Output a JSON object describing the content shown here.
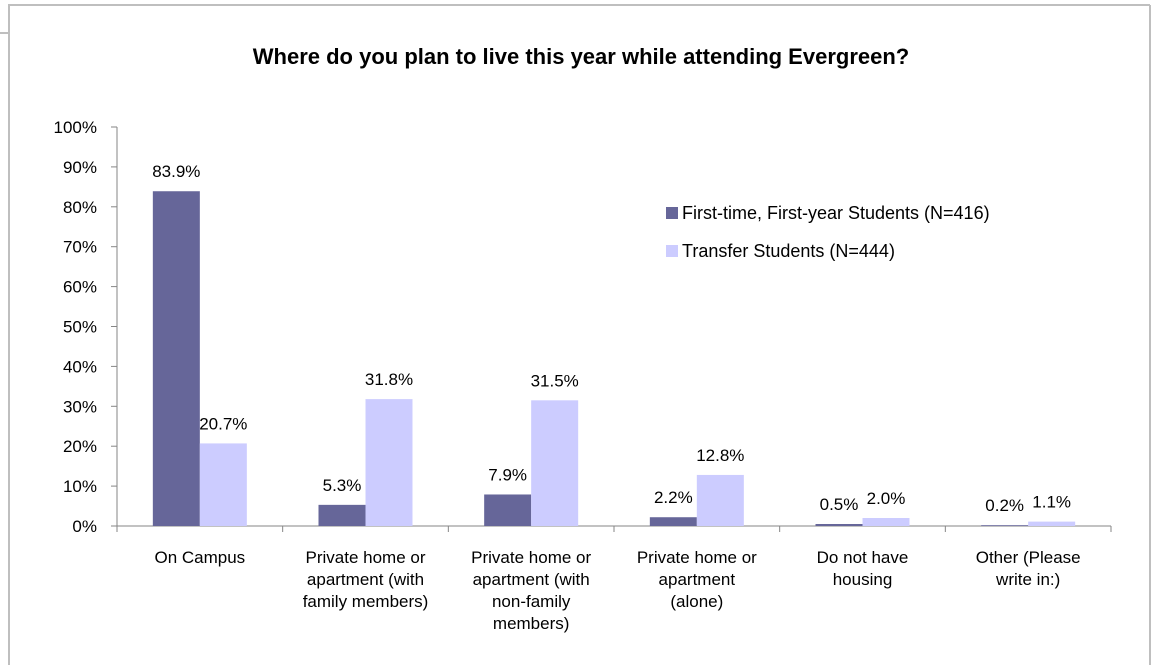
{
  "chart_data": {
    "type": "bar",
    "title": "Where do you plan to live this year while attending Evergreen?",
    "xlabel": "",
    "ylabel": "",
    "ylim": [
      0,
      100
    ],
    "yticks": [
      "0%",
      "10%",
      "20%",
      "30%",
      "40%",
      "50%",
      "60%",
      "70%",
      "80%",
      "90%",
      "100%"
    ],
    "categories": [
      [
        "On Campus"
      ],
      [
        "Private home or",
        "apartment (with",
        "family members)"
      ],
      [
        "Private home or",
        "apartment (with",
        "non-family",
        "members)"
      ],
      [
        "Private home or",
        "apartment",
        "(alone)"
      ],
      [
        "Do not have",
        "housing"
      ],
      [
        "Other (Please",
        "write in:)"
      ]
    ],
    "series": [
      {
        "name": "First-time, First-year Students (N=416)",
        "color": "#666699",
        "values": [
          83.9,
          5.3,
          7.9,
          2.2,
          0.5,
          0.2
        ],
        "labels": [
          "83.9%",
          "5.3%",
          "7.9%",
          "2.2%",
          "0.5%",
          "0.2%"
        ]
      },
      {
        "name": "Transfer Students (N=444)",
        "color": "#ccccff",
        "values": [
          20.7,
          31.8,
          31.5,
          12.8,
          2.0,
          1.1
        ],
        "labels": [
          "20.7%",
          "31.8%",
          "31.5%",
          "12.8%",
          "2.0%",
          "1.1%"
        ]
      }
    ],
    "grid": false,
    "legend": "right"
  }
}
